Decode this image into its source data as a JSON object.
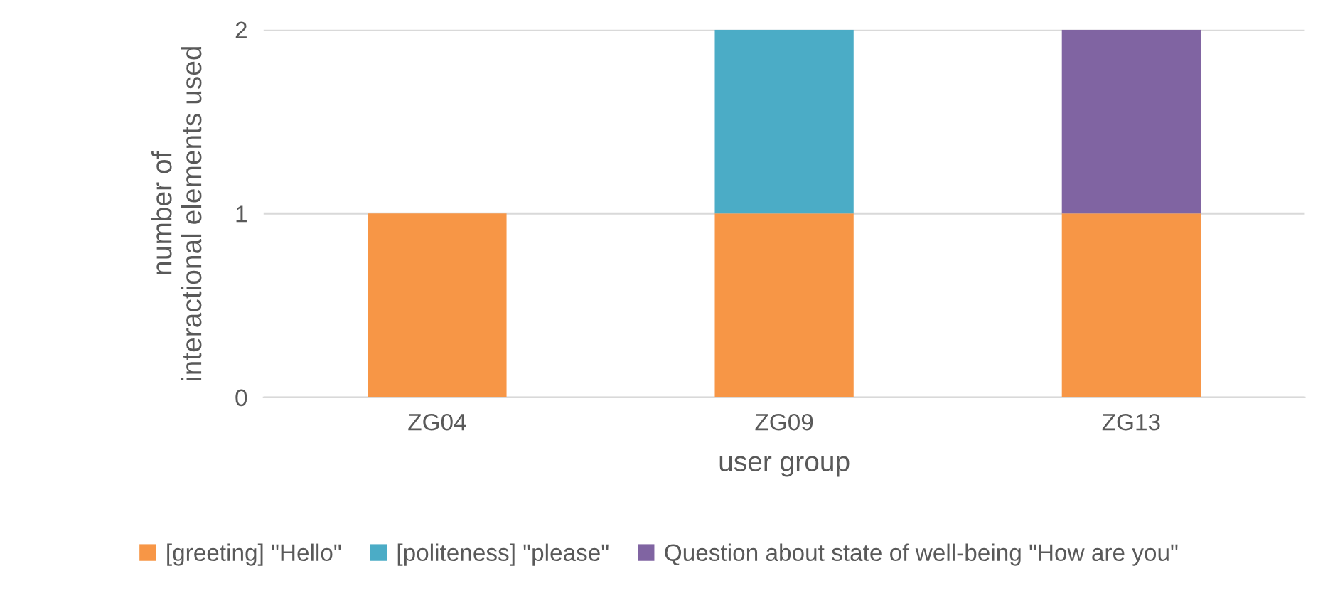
{
  "chart_data": {
    "type": "bar",
    "stacked": true,
    "xlabel": "user group",
    "ylabel": "number of\ninteractional elements used",
    "categories": [
      "ZG04",
      "ZG09",
      "ZG13"
    ],
    "series": [
      {
        "name": "[greeting] \"Hello\"",
        "color": "#f79646",
        "values": [
          1,
          1,
          1
        ]
      },
      {
        "name": "[politeness] \"please\"",
        "color": "#4bacc6",
        "values": [
          0,
          1,
          0
        ]
      },
      {
        "name": "Question about state of well-being \"How are you\"",
        "color": "#8064a2",
        "values": [
          0,
          0,
          1
        ]
      }
    ],
    "ylim": [
      0,
      2
    ],
    "yticks": [
      0,
      1,
      2
    ],
    "grid": "y",
    "legend": "bottom"
  }
}
